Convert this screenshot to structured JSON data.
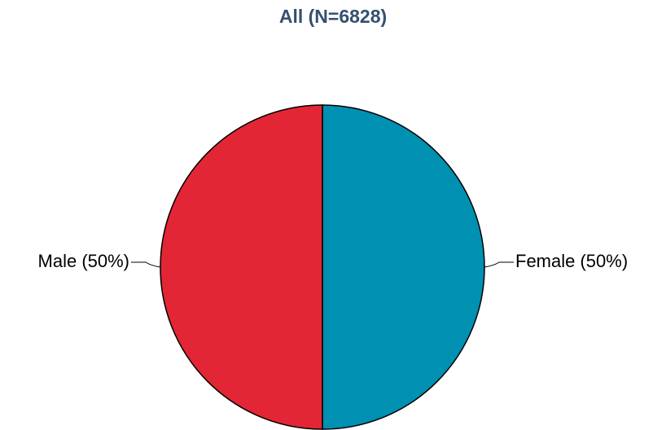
{
  "chart_data": {
    "type": "pie",
    "title": "All (N=6828)",
    "categories": [
      "Female (50%)",
      "Male (50%)"
    ],
    "values": [
      50,
      50
    ],
    "colors": [
      "#0090b2",
      "#e32636"
    ]
  }
}
